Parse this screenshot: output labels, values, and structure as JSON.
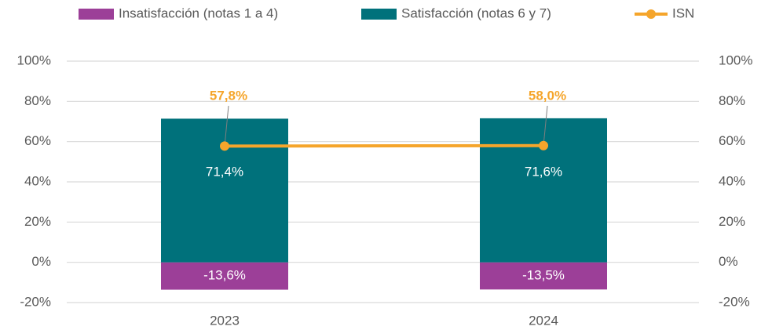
{
  "chart_data": {
    "type": "bar",
    "categories": [
      "2023",
      "2024"
    ],
    "series": [
      {
        "name": "Insatisfacción (notas 1 a 4)",
        "color": "#9c3f98",
        "values": [
          -13.6,
          -13.5
        ],
        "value_labels": [
          "-13,6%",
          "-13,5%"
        ]
      },
      {
        "name": "Satisfacción (notas 6 y 7)",
        "color": "#00717b",
        "values": [
          71.4,
          71.6
        ],
        "value_labels": [
          "71,4%",
          "71,6%"
        ]
      },
      {
        "name": "ISN",
        "type": "line",
        "color": "#f5a52b",
        "values": [
          57.8,
          58.0
        ],
        "value_labels": [
          "57,8%",
          "58,0%"
        ]
      }
    ],
    "ylim": [
      -20,
      100
    ],
    "yticks": [
      {
        "value": -20,
        "label": "-20%"
      },
      {
        "value": 0,
        "label": "0%"
      },
      {
        "value": 20,
        "label": "20%"
      },
      {
        "value": 40,
        "label": "40%"
      },
      {
        "value": 60,
        "label": "60%"
      },
      {
        "value": 80,
        "label": "80%"
      },
      {
        "value": 100,
        "label": "100%"
      }
    ],
    "y2lim": [
      -20,
      100
    ],
    "y2ticks": [
      {
        "value": -20,
        "label": "-20%"
      },
      {
        "value": 0,
        "label": "0%"
      },
      {
        "value": 20,
        "label": "20%"
      },
      {
        "value": 40,
        "label": "40%"
      },
      {
        "value": 60,
        "label": "60%"
      },
      {
        "value": 80,
        "label": "80%"
      },
      {
        "value": 100,
        "label": "100%"
      }
    ],
    "grid": true,
    "legend": "top"
  }
}
